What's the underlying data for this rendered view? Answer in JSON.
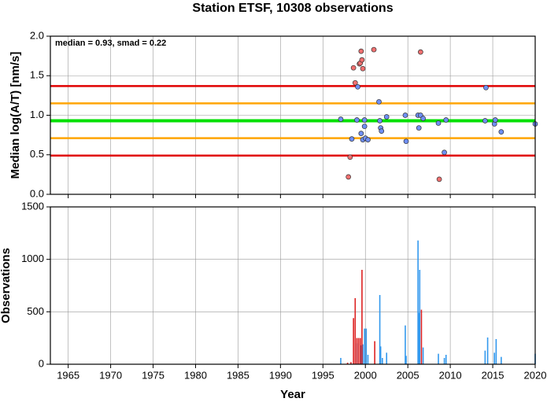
{
  "chart_data": [
    {
      "type": "scatter",
      "title": "Station ETSF, 10308 observations",
      "ylabel": "Median log(A/T) [nm/s]",
      "annotation": "median = 0.93, smad = 0.22",
      "xlim": [
        1962.9,
        2020
      ],
      "xticks": [
        1965,
        1970,
        1975,
        1980,
        1985,
        1990,
        1995,
        2000,
        2005,
        2010,
        2015,
        2020
      ],
      "ylim": [
        0,
        2
      ],
      "yticks": [
        {
          "value": 0,
          "label": "0.0"
        },
        {
          "value": 0.5,
          "label": "0.5"
        },
        {
          "value": 1,
          "label": "1.0"
        },
        {
          "value": 1.5,
          "label": "1.5"
        },
        {
          "value": 2,
          "label": "2.0"
        }
      ],
      "grid": true,
      "hlines": [
        {
          "value": 0.93,
          "color": "#00e000"
        },
        {
          "value": 0.71,
          "color": "#ffa500"
        },
        {
          "value": 1.15,
          "color": "#ffa500"
        },
        {
          "value": 0.49,
          "color": "#e00000"
        },
        {
          "value": 1.37,
          "color": "#e00000"
        }
      ],
      "series": [
        {
          "color": "#6f8ff5",
          "x": [
            1997.1,
            1998.4,
            1999.0,
            1999.1,
            1999.5,
            1999.7,
            1999.9,
            1999.9,
            2000.0,
            2000.3,
            2001.7,
            2001.6,
            2001.8,
            2001.9,
            2002.5,
            2004.7,
            2004.8,
            2006.2,
            2006.3,
            2006.5,
            2006.8,
            2008.6,
            2009.3,
            2009.5,
            2014.2,
            2014.1,
            2015.2,
            2015.3,
            2016.0,
            2020.0
          ],
          "values": [
            0.95,
            0.7,
            0.94,
            1.36,
            0.77,
            0.69,
            0.86,
            0.94,
            0.71,
            0.69,
            0.93,
            1.17,
            0.84,
            0.8,
            0.98,
            1.0,
            0.67,
            1.0,
            0.84,
            1.0,
            0.96,
            0.9,
            0.53,
            0.94,
            1.35,
            0.93,
            0.89,
            0.94,
            0.79,
            0.89
          ]
        },
        {
          "color": "#f07070",
          "x": [
            1998.0,
            1998.2,
            1998.6,
            1998.8,
            1999.3,
            1999.4,
            1999.5,
            1999.6,
            1999.7,
            2001.0,
            2006.5,
            2008.7
          ],
          "values": [
            0.22,
            0.47,
            1.6,
            1.41,
            1.65,
            1.66,
            1.81,
            1.7,
            1.59,
            1.83,
            1.8,
            0.19
          ]
        }
      ]
    },
    {
      "type": "bar",
      "ylabel": "Observations",
      "xlabel": "Year",
      "xlim": [
        1962.9,
        2020
      ],
      "xticks": [
        1965,
        1970,
        1975,
        1980,
        1985,
        1990,
        1995,
        2000,
        2005,
        2010,
        2015,
        2020
      ],
      "ylim": [
        0,
        1500
      ],
      "yticks": [
        0,
        500,
        1000,
        1500
      ],
      "grid": true,
      "series": [
        {
          "color": "#3399ee",
          "x": [
            1997.1,
            1999.0,
            1999.5,
            1999.7,
            1999.9,
            2000.1,
            2000.3,
            2001.7,
            2001.8,
            2002.0,
            2002.5,
            2004.7,
            2004.8,
            2006.2,
            2006.3,
            2006.4,
            2006.8,
            2008.6,
            2009.3,
            2009.5,
            2014.1,
            2014.4,
            2015.2,
            2015.4,
            2016.0,
            2020.0
          ],
          "values": [
            60,
            200,
            180,
            190,
            340,
            340,
            90,
            660,
            170,
            60,
            110,
            370,
            80,
            1180,
            490,
            900,
            160,
            100,
            60,
            90,
            130,
            255,
            110,
            240,
            70,
            100
          ]
        },
        {
          "color": "#dd2222",
          "x": [
            1997.9,
            1998.3,
            1998.6,
            1998.8,
            1999.0,
            1999.2,
            1999.4,
            1999.6,
            2001.1,
            2006.6
          ],
          "values": [
            15,
            20,
            440,
            630,
            250,
            250,
            250,
            900,
            220,
            520
          ]
        }
      ]
    }
  ]
}
